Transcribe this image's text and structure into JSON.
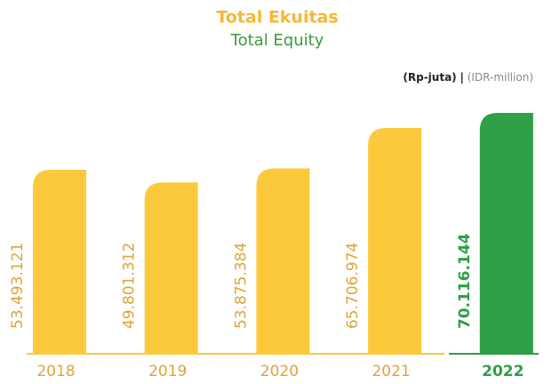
{
  "chart_data": {
    "type": "bar",
    "title": "Total Ekuitas",
    "subtitle": "Total Equity",
    "unit_label": "(Rp-juta)",
    "unit_separator": "|",
    "unit_label_en": "(IDR-million)",
    "categories": [
      "2018",
      "2019",
      "2020",
      "2021",
      "2022"
    ],
    "values": [
      53493121,
      49801312,
      53875384,
      65706974,
      70116144
    ],
    "value_labels": [
      "53.493.121",
      "49.801.312",
      "53.875.384",
      "65.706.974",
      "70.116.144"
    ],
    "colors": [
      "#fcc93c",
      "#fcc93c",
      "#fcc93c",
      "#fcc93c",
      "#2f9f48"
    ],
    "label_colors": [
      "#e0a33a",
      "#e0a33a",
      "#e0a33a",
      "#e0a33a",
      "#2f9f48"
    ]
  }
}
